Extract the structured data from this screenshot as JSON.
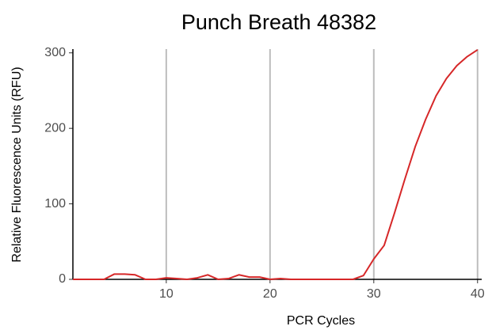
{
  "chart_data": {
    "type": "line",
    "title": "Punch Breath 48382",
    "x_label": "PCR Cycles",
    "y_label": "Relative Fluorescence Units (RFU)",
    "x": [
      1,
      2,
      3,
      4,
      5,
      6,
      7,
      8,
      9,
      10,
      11,
      12,
      13,
      14,
      15,
      16,
      17,
      18,
      19,
      20,
      21,
      22,
      23,
      24,
      25,
      26,
      27,
      28,
      29,
      30,
      31,
      32,
      33,
      34,
      35,
      36,
      37,
      38,
      39,
      40
    ],
    "series": [
      {
        "name": "RFU",
        "color": "#d62728",
        "values": [
          0,
          0,
          0,
          0,
          7,
          7,
          6,
          0,
          0,
          2,
          1,
          0,
          2,
          6,
          0,
          1,
          6,
          3,
          3,
          0,
          1,
          0,
          0,
          0,
          0,
          0,
          0,
          0,
          5,
          27,
          45,
          88,
          133,
          176,
          212,
          243,
          266,
          283,
          295,
          304
        ]
      }
    ],
    "xlim": [
      1,
      40.4
    ],
    "ylim": [
      0,
      305
    ],
    "xticks": [
      10,
      20,
      30,
      40
    ],
    "yticks": [
      0,
      100,
      200,
      300
    ],
    "grid": "x"
  }
}
